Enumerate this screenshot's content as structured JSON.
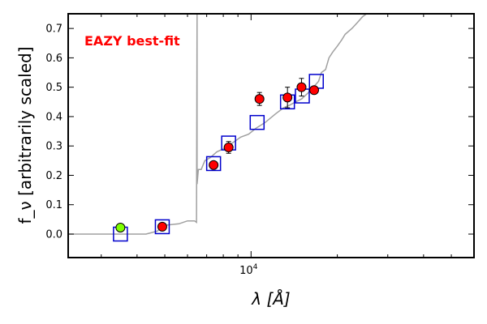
{
  "chart_data": {
    "type": "scatter",
    "title": "",
    "xlabel": "λ [Å]",
    "ylabel": "f_ν [arbitrarily scaled]",
    "xscale": "log",
    "xlim": [
      2300,
      60000
    ],
    "ylim": [
      -0.08,
      0.75
    ],
    "yticks": [
      0.0,
      0.1,
      0.2,
      0.3,
      0.4,
      0.5,
      0.6,
      0.7
    ],
    "xtick_labels": [
      "10^4"
    ],
    "grid": false,
    "annotation": {
      "text": "EAZY best-fit",
      "color": "#ff0000"
    },
    "series": [
      {
        "kind": "line",
        "color": "#a0a0a0",
        "points": [
          [
            2300,
            0.0
          ],
          [
            4300,
            0.0
          ],
          [
            4700,
            0.01
          ],
          [
            5000,
            0.03
          ],
          [
            5600,
            0.035
          ],
          [
            6000,
            0.045
          ],
          [
            6350,
            0.045
          ],
          [
            6450,
            0.04
          ],
          [
            6480,
            0.75
          ],
          [
            6480,
            0.17
          ],
          [
            6550,
            0.22
          ],
          [
            6700,
            0.22
          ],
          [
            6900,
            0.25
          ],
          [
            7200,
            0.26
          ],
          [
            7600,
            0.28
          ],
          [
            8000,
            0.29
          ],
          [
            8600,
            0.31
          ],
          [
            9200,
            0.33
          ],
          [
            9800,
            0.34
          ],
          [
            10400,
            0.36
          ],
          [
            11200,
            0.38
          ],
          [
            12200,
            0.41
          ],
          [
            13000,
            0.43
          ],
          [
            13700,
            0.44
          ],
          [
            14300,
            0.45
          ],
          [
            15000,
            0.46
          ],
          [
            15800,
            0.48
          ],
          [
            16500,
            0.5
          ],
          [
            17200,
            0.52
          ],
          [
            17600,
            0.55
          ],
          [
            18200,
            0.56
          ],
          [
            18700,
            0.6
          ],
          [
            19300,
            0.62
          ],
          [
            20000,
            0.64
          ],
          [
            20700,
            0.66
          ],
          [
            21300,
            0.68
          ],
          [
            22500,
            0.7
          ],
          [
            23500,
            0.72
          ],
          [
            24500,
            0.74
          ],
          [
            25300,
            0.75
          ]
        ]
      },
      {
        "kind": "model_points",
        "marker": "square",
        "color": "#0000cc",
        "points": [
          [
            3500,
            0.0
          ],
          [
            4900,
            0.025
          ],
          [
            7400,
            0.24
          ],
          [
            8350,
            0.31
          ],
          [
            10500,
            0.38
          ],
          [
            13400,
            0.45
          ],
          [
            15100,
            0.47
          ],
          [
            16900,
            0.52
          ]
        ]
      },
      {
        "kind": "observed",
        "marker": "circle",
        "color": "#ff0000",
        "points": [
          [
            4900,
            0.025,
            0.008
          ],
          [
            7400,
            0.235,
            0.01
          ],
          [
            8350,
            0.295,
            0.02
          ],
          [
            10700,
            0.46,
            0.022
          ],
          [
            13400,
            0.465,
            0.035
          ],
          [
            15000,
            0.5,
            0.03
          ],
          [
            16600,
            0.49,
            0.012
          ]
        ]
      },
      {
        "kind": "observed",
        "marker": "circle",
        "color": "#7fff00",
        "points": [
          [
            3500,
            0.022,
            0.012
          ]
        ]
      }
    ]
  }
}
